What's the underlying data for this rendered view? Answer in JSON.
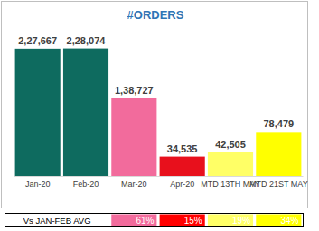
{
  "chart_data": {
    "type": "bar",
    "title": "#ORDERS",
    "categories": [
      "Jan-20",
      "Feb-20",
      "Mar-20",
      "Apr-20",
      "MTD 13TH MAY",
      "MTD 21ST MAY"
    ],
    "values": [
      227667,
      228074,
      138727,
      34535,
      42505,
      78479
    ],
    "value_labels": [
      "2,27,667",
      "2,28,074",
      "1,38,727",
      "34,535",
      "42,505",
      "78,479"
    ],
    "colors": [
      "#0e6b5f",
      "#0e6b5f",
      "#f26b9c",
      "#e8101c",
      "#ffff66",
      "#ffff00"
    ],
    "ylim": [
      0,
      250000
    ],
    "data_labels": true,
    "tick_labels": "x",
    "annotations": [
      {
        "label": "Vs JAN-FEB AVG",
        "values": [
          61,
          15,
          19,
          34
        ],
        "value_labels": [
          "61%",
          "15%",
          "19%",
          "34%"
        ],
        "colors": [
          "#f26b9c",
          "#ff0000",
          "#ffff66",
          "#ffff00"
        ]
      }
    ]
  }
}
